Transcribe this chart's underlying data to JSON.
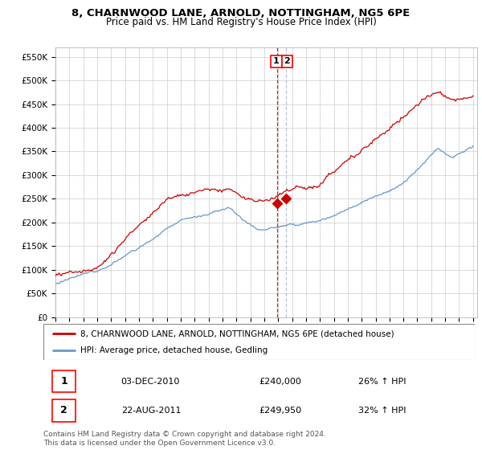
{
  "title": "8, CHARNWOOD LANE, ARNOLD, NOTTINGHAM, NG5 6PE",
  "subtitle": "Price paid vs. HM Land Registry's House Price Index (HPI)",
  "ylabel_ticks": [
    "£0",
    "£50K",
    "£100K",
    "£150K",
    "£200K",
    "£250K",
    "£300K",
    "£350K",
    "£400K",
    "£450K",
    "£500K",
    "£550K"
  ],
  "ytick_vals": [
    0,
    50000,
    100000,
    150000,
    200000,
    250000,
    300000,
    350000,
    400000,
    450000,
    500000,
    550000
  ],
  "ylim": [
    0,
    570000
  ],
  "sale1_t": 2010.917,
  "sale1_price": 240000,
  "sale2_t": 2011.583,
  "sale2_price": 249950,
  "legend_entry1": "8, CHARNWOOD LANE, ARNOLD, NOTTINGHAM, NG5 6PE (detached house)",
  "legend_entry2": "HPI: Average price, detached house, Gedling",
  "table_row1": [
    "1",
    "03-DEC-2010",
    "£240,000",
    "26% ↑ HPI"
  ],
  "table_row2": [
    "2",
    "22-AUG-2011",
    "£249,950",
    "32% ↑ HPI"
  ],
  "footer": "Contains HM Land Registry data © Crown copyright and database right 2024.\nThis data is licensed under the Open Government Licence v3.0.",
  "line1_color": "#cc0000",
  "line2_color": "#6699cc",
  "sale_marker_color": "#cc0000",
  "vline_color": "#cc0000",
  "vline2_color": "#aabbcc",
  "bg_color": "#ffffff",
  "grid_color": "#cccccc",
  "title_fontsize": 9.5,
  "subtitle_fontsize": 8.5
}
